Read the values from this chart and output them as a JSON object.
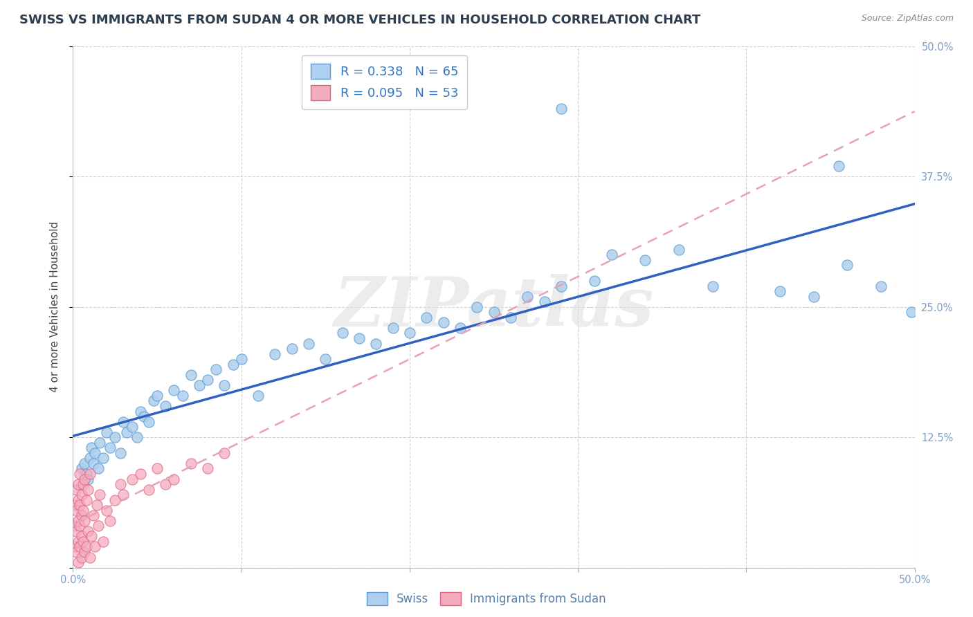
{
  "title": "SWISS VS IMMIGRANTS FROM SUDAN 4 OR MORE VEHICLES IN HOUSEHOLD CORRELATION CHART",
  "source": "Source: ZipAtlas.com",
  "ylabel": "4 or more Vehicles in Household",
  "xlim": [
    0.0,
    0.5
  ],
  "ylim": [
    0.0,
    0.5
  ],
  "xticks": [
    0.0,
    0.1,
    0.2,
    0.3,
    0.4,
    0.5
  ],
  "yticks": [
    0.0,
    0.125,
    0.25,
    0.375,
    0.5
  ],
  "yticklabels_right": [
    "",
    "12.5%",
    "25.0%",
    "37.5%",
    "50.0%"
  ],
  "swiss_color": "#AECFED",
  "sudan_color": "#F4ABBE",
  "swiss_edge_color": "#5B9BD5",
  "sudan_edge_color": "#E06080",
  "swiss_line_color": "#3060C0",
  "sudan_line_color": "#E8A0B8",
  "R_swiss": 0.338,
  "N_swiss": 65,
  "R_sudan": 0.095,
  "N_sudan": 53,
  "background_color": "#FFFFFF",
  "grid_color": "#CCCCCC",
  "watermark": "ZIPatlas",
  "title_fontsize": 13,
  "axis_label_fontsize": 11,
  "tick_fontsize": 10.5,
  "legend_fontsize": 13
}
